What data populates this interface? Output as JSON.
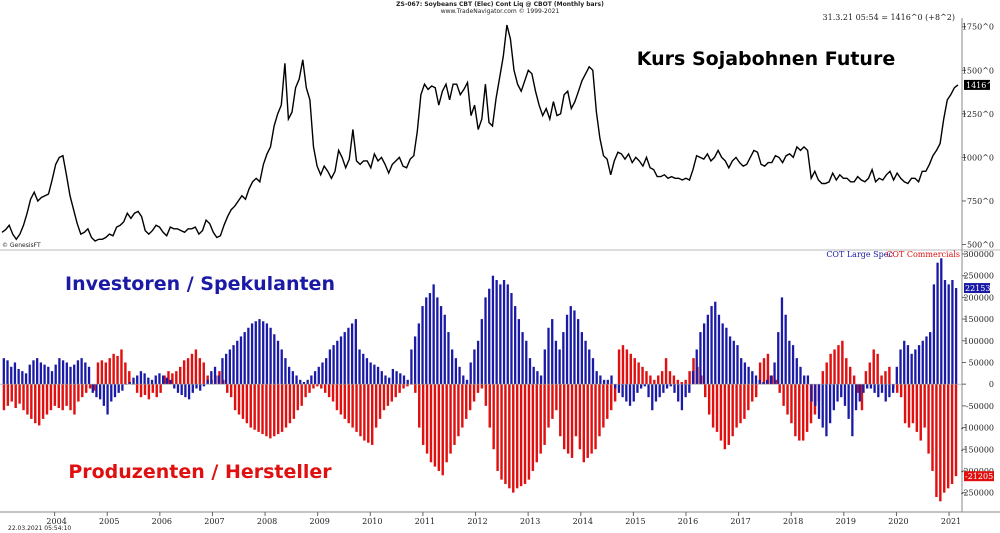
{
  "header": {
    "line1": "ZS-067:  Soybeans CBT (Elec) Cont Liq @ CBOT  (Monthly bars)",
    "line2": "www.TradeNavigator.com © 1999-2021",
    "readout": "31.3.21 05:54 = 1416^0 (+8^2)",
    "genesis": "© GenesisFT",
    "footer_time": "22.03.2021  05:54:10"
  },
  "colors": {
    "price": "#000000",
    "large_spec": "#1a1aa6",
    "commercials": "#e01010",
    "axis_line": "#bbbbbb"
  },
  "chart_data": [
    {
      "type": "line",
      "title": "Kurs Sojabohnen Future",
      "ylim": [
        480,
        1800
      ],
      "yticks": [
        500,
        750,
        1000,
        1250,
        1500,
        1750
      ],
      "ytick_labels": [
        "500^0",
        "750^0",
        "1000^0",
        "1250^0",
        "1500^0",
        "1750^0"
      ],
      "last_value_label": "1416^0",
      "x_start": 2003.0,
      "x_end": 2021.17,
      "values": [
        570,
        585,
        610,
        560,
        530,
        560,
        610,
        680,
        760,
        800,
        750,
        770,
        780,
        790,
        870,
        960,
        1000,
        1010,
        900,
        780,
        700,
        620,
        560,
        570,
        590,
        540,
        520,
        530,
        530,
        540,
        560,
        550,
        600,
        610,
        630,
        680,
        650,
        680,
        690,
        660,
        580,
        560,
        580,
        610,
        600,
        570,
        550,
        600,
        590,
        590,
        580,
        570,
        590,
        590,
        600,
        560,
        580,
        640,
        620,
        570,
        540,
        550,
        610,
        660,
        700,
        720,
        750,
        780,
        760,
        820,
        860,
        880,
        860,
        960,
        1020,
        1060,
        1180,
        1250,
        1300,
        1540,
        1220,
        1260,
        1400,
        1450,
        1560,
        1400,
        1330,
        1060,
        950,
        900,
        950,
        920,
        880,
        920,
        1040,
        1000,
        940,
        990,
        1160,
        980,
        960,
        980,
        980,
        940,
        1020,
        980,
        1000,
        960,
        910,
        960,
        980,
        1000,
        950,
        940,
        990,
        1010,
        1150,
        1360,
        1420,
        1390,
        1410,
        1400,
        1300,
        1380,
        1420,
        1330,
        1420,
        1420,
        1360,
        1390,
        1430,
        1240,
        1300,
        1160,
        1220,
        1420,
        1200,
        1180,
        1340,
        1460,
        1580,
        1760,
        1680,
        1500,
        1420,
        1380,
        1440,
        1500,
        1480,
        1380,
        1300,
        1240,
        1280,
        1220,
        1320,
        1240,
        1250,
        1360,
        1380,
        1280,
        1320,
        1380,
        1440,
        1480,
        1520,
        1500,
        1260,
        1110,
        1010,
        990,
        900,
        980,
        1030,
        1020,
        990,
        1020,
        970,
        1000,
        980,
        950,
        1000,
        940,
        930,
        890,
        890,
        900,
        880,
        890,
        880,
        880,
        870,
        880,
        870,
        930,
        1010,
        1000,
        990,
        1020,
        980,
        1000,
        1040,
        1000,
        980,
        940,
        980,
        1000,
        970,
        950,
        960,
        1000,
        1040,
        1030,
        960,
        950,
        970,
        970,
        1010,
        1000,
        970,
        1010,
        1020,
        1000,
        1060,
        1040,
        1060,
        1040,
        880,
        920,
        870,
        850,
        850,
        860,
        910,
        870,
        900,
        880,
        880,
        860,
        860,
        890,
        870,
        860,
        880,
        930,
        860,
        880,
        870,
        900,
        920,
        870,
        910,
        880,
        860,
        850,
        880,
        880,
        860,
        920,
        920,
        960,
        1010,
        1040,
        1080,
        1220,
        1330,
        1360,
        1400,
        1416
      ]
    },
    {
      "type": "bar",
      "ylim": [
        -290000,
        300000
      ],
      "yticks": [
        -250000,
        -200000,
        -150000,
        -100000,
        -50000,
        0,
        50000,
        100000,
        150000,
        200000,
        250000,
        300000
      ],
      "ytick_labels": [
        "-250000",
        "-200000",
        "-150000",
        "-100000",
        "-50000",
        "0",
        "50000",
        "100000",
        "150000",
        "200000",
        "250000",
        "300000"
      ],
      "xticks": [
        "2004",
        "2005",
        "2006",
        "2007",
        "2008",
        "2009",
        "2010",
        "2011",
        "2012",
        "2013",
        "2014",
        "2015",
        "2016",
        "2017",
        "2018",
        "2019",
        "2020",
        "2021"
      ],
      "xtick_positions": [
        2004.0,
        2005.0,
        2006.0,
        2007.0,
        2008.0,
        2009.0,
        2010.0,
        2011.0,
        2012.0,
        2013.0,
        2014.0,
        2015.0,
        2016.0,
        2017.0,
        2018.0,
        2019.0,
        2020.0,
        2021.0
      ],
      "x_start": 2003.0,
      "x_end": 2021.17,
      "series": [
        {
          "name": "COT Large Spec",
          "last_value_label": "221531",
          "values": [
            60000,
            55000,
            40000,
            50000,
            35000,
            30000,
            25000,
            45000,
            55000,
            60000,
            50000,
            45000,
            40000,
            30000,
            45000,
            60000,
            55000,
            50000,
            40000,
            45000,
            55000,
            60000,
            50000,
            40000,
            -20000,
            -30000,
            -35000,
            -50000,
            -70000,
            -40000,
            -30000,
            -20000,
            -15000,
            0,
            5000,
            15000,
            20000,
            30000,
            25000,
            15000,
            10000,
            20000,
            25000,
            20000,
            15000,
            10000,
            -10000,
            -20000,
            -25000,
            -30000,
            -35000,
            -20000,
            -10000,
            -15000,
            -5000,
            10000,
            30000,
            40000,
            20000,
            60000,
            70000,
            80000,
            90000,
            100000,
            110000,
            120000,
            130000,
            140000,
            145000,
            150000,
            145000,
            140000,
            130000,
            115000,
            100000,
            80000,
            60000,
            40000,
            30000,
            20000,
            10000,
            5000,
            10000,
            20000,
            30000,
            40000,
            50000,
            60000,
            80000,
            90000,
            100000,
            110000,
            120000,
            130000,
            140000,
            150000,
            80000,
            70000,
            60000,
            50000,
            45000,
            40000,
            30000,
            20000,
            15000,
            35000,
            30000,
            25000,
            20000,
            10000,
            80000,
            110000,
            140000,
            180000,
            200000,
            210000,
            230000,
            200000,
            180000,
            160000,
            120000,
            80000,
            60000,
            40000,
            20000,
            10000,
            50000,
            80000,
            100000,
            150000,
            200000,
            220000,
            250000,
            240000,
            230000,
            240000,
            230000,
            210000,
            180000,
            150000,
            120000,
            100000,
            60000,
            40000,
            30000,
            20000,
            80000,
            130000,
            150000,
            100000,
            80000,
            120000,
            160000,
            180000,
            170000,
            150000,
            120000,
            100000,
            80000,
            60000,
            30000,
            20000,
            10000,
            10000,
            20000,
            -10000,
            -20000,
            -30000,
            -40000,
            -50000,
            -40000,
            -20000,
            -10000,
            -5000,
            -30000,
            -60000,
            -40000,
            -30000,
            -20000,
            -10000,
            -5000,
            -20000,
            -40000,
            -60000,
            -30000,
            -20000,
            30000,
            80000,
            120000,
            140000,
            160000,
            180000,
            190000,
            160000,
            140000,
            130000,
            110000,
            100000,
            90000,
            60000,
            50000,
            40000,
            30000,
            20000,
            10000,
            5000,
            10000,
            20000,
            50000,
            120000,
            200000,
            160000,
            100000,
            90000,
            60000,
            40000,
            20000,
            20000,
            -40000,
            -50000,
            -80000,
            -100000,
            -120000,
            -90000,
            -60000,
            -40000,
            -30000,
            -50000,
            -80000,
            -120000,
            -60000,
            -40000,
            -20000,
            -10000,
            -10000,
            -20000,
            -30000,
            -20000,
            -40000,
            -30000,
            -20000,
            40000,
            80000,
            100000,
            90000,
            70000,
            80000,
            90000,
            100000,
            110000,
            120000,
            230000,
            280000,
            290000,
            240000,
            230000,
            240000,
            221531
          ]
        },
        {
          "name": "COT Commercials",
          "last_value_label": "-212051",
          "values": [
            -60000,
            -50000,
            -40000,
            -55000,
            -45000,
            -60000,
            -70000,
            -80000,
            -90000,
            -95000,
            -80000,
            -70000,
            -60000,
            -50000,
            -55000,
            -60000,
            -50000,
            -60000,
            -70000,
            -40000,
            -30000,
            -20000,
            -10000,
            -15000,
            50000,
            55000,
            50000,
            60000,
            70000,
            65000,
            80000,
            50000,
            30000,
            0,
            -20000,
            -30000,
            -25000,
            -35000,
            -20000,
            -30000,
            -20000,
            20000,
            30000,
            25000,
            30000,
            40000,
            55000,
            60000,
            70000,
            80000,
            60000,
            50000,
            20000,
            10000,
            20000,
            30000,
            10000,
            -20000,
            -30000,
            -60000,
            -70000,
            -80000,
            -90000,
            -100000,
            -105000,
            -110000,
            -115000,
            -120000,
            -125000,
            -120000,
            -115000,
            -110000,
            -100000,
            -90000,
            -80000,
            -60000,
            -50000,
            -30000,
            -20000,
            -10000,
            -5000,
            -10000,
            -20000,
            -30000,
            -40000,
            -60000,
            -70000,
            -80000,
            -90000,
            -100000,
            -110000,
            -120000,
            -130000,
            -135000,
            -140000,
            -100000,
            -80000,
            -60000,
            -50000,
            -40000,
            -30000,
            -20000,
            -10000,
            -5000,
            0,
            -20000,
            -100000,
            -140000,
            -160000,
            -180000,
            -190000,
            -200000,
            -210000,
            -180000,
            -160000,
            -140000,
            -120000,
            -100000,
            -80000,
            -60000,
            -40000,
            -20000,
            -10000,
            -50000,
            -100000,
            -150000,
            -200000,
            -220000,
            -230000,
            -240000,
            -250000,
            -240000,
            -235000,
            -230000,
            -220000,
            -200000,
            -180000,
            -160000,
            -140000,
            -100000,
            -80000,
            -60000,
            -120000,
            -150000,
            -160000,
            -170000,
            -120000,
            -150000,
            -180000,
            -170000,
            -160000,
            -150000,
            -120000,
            -100000,
            -80000,
            -60000,
            -40000,
            80000,
            90000,
            80000,
            70000,
            60000,
            50000,
            40000,
            30000,
            20000,
            10000,
            20000,
            30000,
            60000,
            30000,
            20000,
            10000,
            5000,
            10000,
            30000,
            60000,
            40000,
            20000,
            -30000,
            -70000,
            -100000,
            -110000,
            -130000,
            -150000,
            -140000,
            -120000,
            -100000,
            -90000,
            -80000,
            -60000,
            -40000,
            -30000,
            50000,
            60000,
            70000,
            20000,
            10000,
            -20000,
            -50000,
            -70000,
            -90000,
            -120000,
            -130000,
            -130000,
            -110000,
            -90000,
            -70000,
            -40000,
            30000,
            50000,
            70000,
            80000,
            90000,
            100000,
            60000,
            40000,
            20000,
            -20000,
            -60000,
            30000,
            50000,
            80000,
            70000,
            20000,
            30000,
            40000,
            -10000,
            -20000,
            -30000,
            -90000,
            -100000,
            -90000,
            -110000,
            -130000,
            -100000,
            -160000,
            -200000,
            -260000,
            -270000,
            -250000,
            -240000,
            -230000,
            -212051
          ]
        }
      ]
    }
  ],
  "annotations": {
    "investors": "Investoren / Spekulanten",
    "producers": "Produzenten / Hersteller"
  }
}
